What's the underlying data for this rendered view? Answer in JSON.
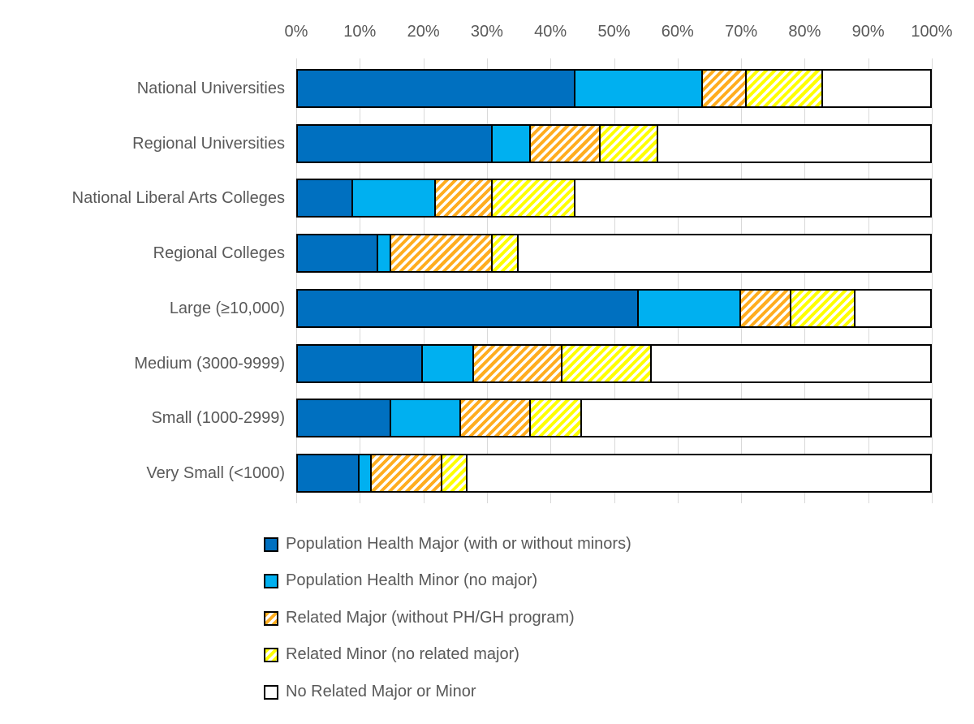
{
  "colors": {
    "axis_text": "#595959",
    "label_text": "#595959",
    "legend_text": "#595959",
    "gridline": "#D9D9D9",
    "bar_border": "#000000",
    "background": "#FFFFFF"
  },
  "chart_data": {
    "type": "bar",
    "subtype": "stacked-horizontal",
    "title": "",
    "x_axis": {
      "position": "top",
      "min": 0,
      "max": 100,
      "tick_labels": [
        "0%",
        "10%",
        "20%",
        "30%",
        "40%",
        "50%",
        "60%",
        "70%",
        "80%",
        "90%",
        "100%"
      ]
    },
    "categories": [
      "National Universities",
      "Regional Universities",
      "National Liberal Arts Colleges",
      "Regional Colleges",
      "Large (≥10,000)",
      "Medium (3000-9999)",
      "Small (1000-2999)",
      "Very Small (<1000)"
    ],
    "series": [
      {
        "name": "Population Health Major (with or without minors)",
        "color": "#0070C0",
        "pattern": "solid",
        "values": [
          44,
          31,
          9,
          13,
          54,
          20,
          15,
          10
        ]
      },
      {
        "name": "Population Health Minor (no major)",
        "color": "#00B0F0",
        "pattern": "solid",
        "values": [
          20,
          6,
          13,
          2,
          16,
          8,
          11,
          2
        ]
      },
      {
        "name": "Related Major (without PH/GH program)",
        "color": "#FFAD1F",
        "pattern": "diagonal-stripes",
        "values": [
          7,
          11,
          9,
          16,
          8,
          14,
          11,
          11
        ]
      },
      {
        "name": "Related Minor (no related major)",
        "color": "#FFFF00",
        "pattern": "diagonal-stripes",
        "values": [
          12,
          9,
          13,
          4,
          10,
          14,
          8,
          4
        ]
      },
      {
        "name": "No Related Major or Minor",
        "color": "#FFFFFF",
        "pattern": "solid",
        "values": [
          17,
          43,
          56,
          65,
          12,
          44,
          55,
          73
        ]
      }
    ],
    "grid": true,
    "legend_position": "bottom"
  }
}
